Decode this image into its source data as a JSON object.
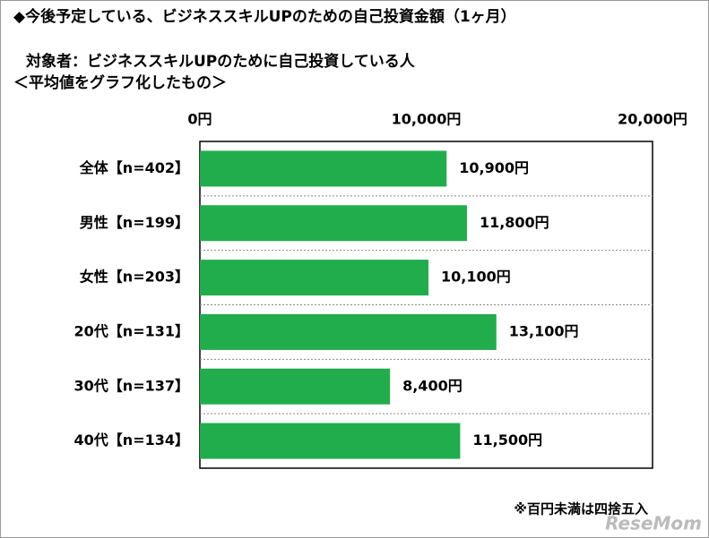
{
  "chart_data": {
    "type": "bar",
    "orientation": "horizontal",
    "title": "◆今後予定している、ビジネススキルUPのための自己投資金額（1ヶ月）",
    "subtitle": "対象者：ビジネススキルUPのために自己投資している人",
    "subtitle2": "＜平均値をグラフ化したもの＞",
    "categories": [
      "全体【n=402】",
      "男性【n=199】",
      "女性【n=203】",
      "20代【n=131】",
      "30代【n=137】",
      "40代【n=134】"
    ],
    "values": [
      10900,
      11800,
      10100,
      13100,
      8400,
      11500
    ],
    "value_labels": [
      "10,900円",
      "11,800円",
      "10,100円",
      "13,100円",
      "8,400円",
      "11,500円"
    ],
    "color": "#21ad4b",
    "xlim": [
      0,
      20000
    ],
    "xticks": [
      {
        "value": 0,
        "label": "0円"
      },
      {
        "value": 10000,
        "label": "10,000円"
      },
      {
        "value": 20000,
        "label": "20,000円"
      }
    ],
    "note": "※百円未満は四捨五入",
    "watermark": "ReseMom"
  }
}
